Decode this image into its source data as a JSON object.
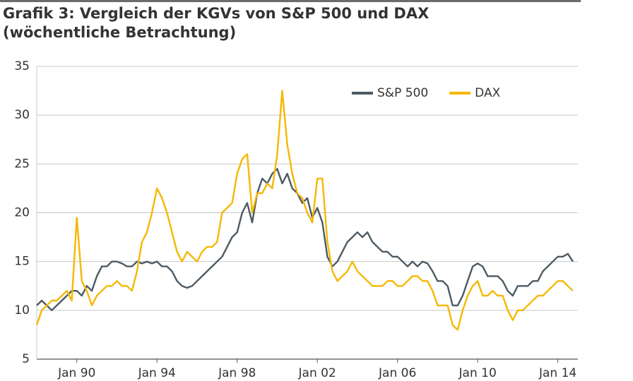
{
  "chart_data": {
    "type": "line",
    "title": "Grafik 3: Vergleich der KGVs von S&P 500 und DAX (wöchentliche Betrachtung)",
    "x": [
      1988,
      1988.25,
      1988.5,
      1988.75,
      1989,
      1989.25,
      1989.5,
      1989.75,
      1990,
      1990.25,
      1990.5,
      1990.75,
      1991,
      1991.25,
      1991.5,
      1991.75,
      1992,
      1992.25,
      1992.5,
      1992.75,
      1993,
      1993.25,
      1993.5,
      1993.75,
      1994,
      1994.25,
      1994.5,
      1994.75,
      1995,
      1995.25,
      1995.5,
      1995.75,
      1996,
      1996.25,
      1996.5,
      1996.75,
      1997,
      1997.25,
      1997.5,
      1997.75,
      1998,
      1998.25,
      1998.5,
      1998.75,
      1999,
      1999.25,
      1999.5,
      1999.75,
      2000,
      2000.25,
      2000.5,
      2000.75,
      2001,
      2001.25,
      2001.5,
      2001.75,
      2002,
      2002.25,
      2002.5,
      2002.75,
      2003,
      2003.25,
      2003.5,
      2003.75,
      2004,
      2004.25,
      2004.5,
      2004.75,
      2005,
      2005.25,
      2005.5,
      2005.75,
      2006,
      2006.25,
      2006.5,
      2006.75,
      2007,
      2007.25,
      2007.5,
      2007.75,
      2008,
      2008.25,
      2008.5,
      2008.75,
      2009,
      2009.25,
      2009.5,
      2009.75,
      2010,
      2010.25,
      2010.5,
      2010.75,
      2011,
      2011.25,
      2011.5,
      2011.75,
      2012,
      2012.25,
      2012.5,
      2012.75,
      2013,
      2013.25,
      2013.5,
      2013.75,
      2014,
      2014.25,
      2014.5,
      2014.75
    ],
    "series": [
      {
        "name": "S&P 500",
        "color": "#4d5a63",
        "values": [
          10.5,
          11,
          10.5,
          10,
          10.5,
          11,
          11.5,
          12,
          12,
          11.5,
          12.5,
          12,
          13.5,
          14.5,
          14.5,
          15,
          15,
          14.8,
          14.5,
          14.5,
          15,
          14.8,
          15,
          14.8,
          15,
          14.5,
          14.5,
          14,
          13,
          12.5,
          12.3,
          12.5,
          13,
          13.5,
          14,
          14.5,
          15,
          15.5,
          16.5,
          17.5,
          18,
          20,
          21,
          19,
          22,
          23.5,
          23,
          24,
          24.5,
          23,
          24,
          22.5,
          22,
          21,
          21.5,
          19.5,
          20.5,
          19,
          15.5,
          14.5,
          15,
          16,
          17,
          17.5,
          18,
          17.5,
          18,
          17,
          16.5,
          16,
          16,
          15.5,
          15.5,
          15,
          14.5,
          15,
          14.5,
          15,
          14.8,
          14,
          13,
          13,
          12.5,
          10.5,
          10.5,
          11.5,
          13,
          14.5,
          14.8,
          14.5,
          13.5,
          13.5,
          13.5,
          13,
          12,
          11.5,
          12.5,
          12.5,
          12.5,
          13,
          13,
          14,
          14.5,
          15,
          15.5,
          15.5,
          15.8,
          15
        ]
      },
      {
        "name": "DAX",
        "color": "#f5b800",
        "values": [
          8.5,
          10,
          10.5,
          11,
          11,
          11.5,
          12,
          11,
          19.5,
          13,
          12,
          10.5,
          11.5,
          12,
          12.5,
          12.5,
          13,
          12.5,
          12.5,
          12,
          14,
          17,
          18,
          20,
          22.5,
          21.5,
          20,
          18,
          16,
          15,
          16,
          15.5,
          15,
          16,
          16.5,
          16.5,
          17,
          20,
          20.5,
          21,
          24,
          25.5,
          26,
          20,
          22,
          22,
          23,
          22.5,
          26,
          32.5,
          27,
          24,
          22,
          21.5,
          20,
          19,
          23.5,
          23.5,
          17,
          14,
          13,
          13.5,
          14,
          15,
          14,
          13.5,
          13,
          12.5,
          12.5,
          12.5,
          13,
          13,
          12.5,
          12.5,
          13,
          13.5,
          13.5,
          13,
          13,
          12,
          10.5,
          10.5,
          10.5,
          8.5,
          8,
          10,
          11.5,
          12.5,
          13,
          11.5,
          11.5,
          12,
          11.5,
          11.5,
          10,
          9,
          10,
          10,
          10.5,
          11,
          11.5,
          11.5,
          12,
          12.5,
          13,
          13,
          12.5,
          12
        ]
      }
    ],
    "xlim": [
      1988,
      2015
    ],
    "xticks": [
      {
        "value": 1990,
        "label": "Jan 90"
      },
      {
        "value": 1994,
        "label": "Jan 94"
      },
      {
        "value": 1998,
        "label": "Jan 98"
      },
      {
        "value": 2002,
        "label": "Jan 02"
      },
      {
        "value": 2006,
        "label": "Jan 06"
      },
      {
        "value": 2010,
        "label": "Jan 10"
      },
      {
        "value": 2014,
        "label": "Jan 14"
      }
    ],
    "ylim": [
      5,
      35
    ],
    "yticks": [
      5,
      10,
      15,
      20,
      25,
      30,
      35
    ],
    "grid": true,
    "legend_position": "top-right"
  }
}
